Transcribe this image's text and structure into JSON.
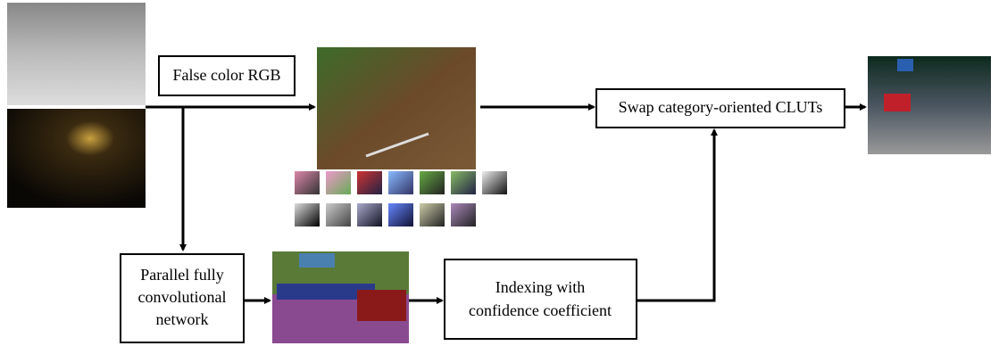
{
  "nodes": [
    {
      "lines": [
        "False color RGB"
      ]
    },
    {
      "lines": [
        "Swap category-oriented CLUTs"
      ]
    },
    {
      "lines": [
        "Parallel fully",
        "convolutional",
        "network"
      ]
    },
    {
      "lines": [
        "Indexing with",
        "confidence coefficient"
      ]
    }
  ]
}
